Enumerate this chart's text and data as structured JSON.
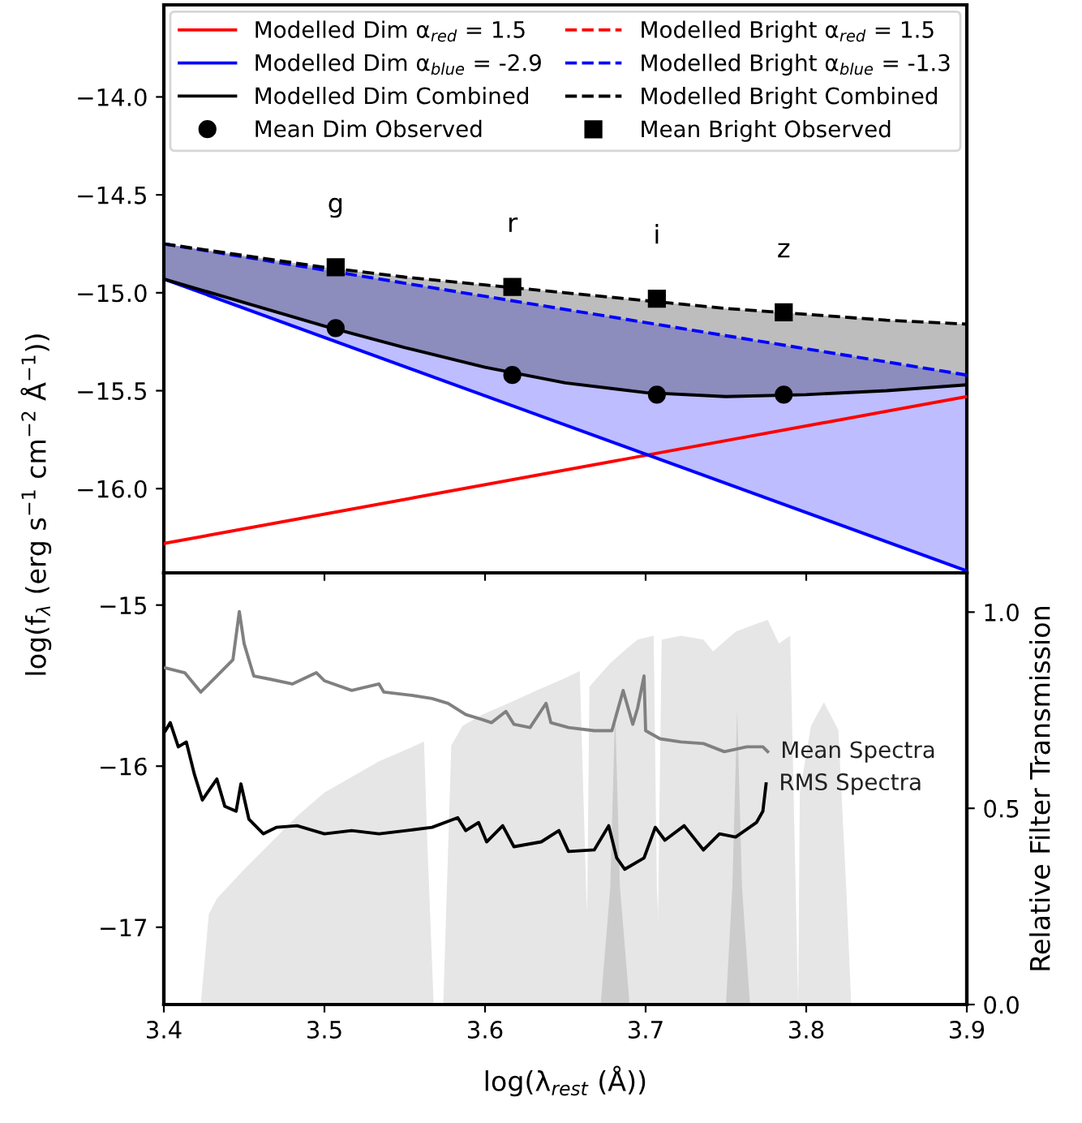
{
  "chart_data": [
    {
      "type": "line",
      "ylabel": "log(f$_{λ}$ (erg s$^{−1}$ cm$^{−2}$ Å$^{−1}$))",
      "xlim": [
        3.4,
        3.9
      ],
      "xticks": [
        3.4,
        3.5,
        3.6,
        3.7,
        3.8,
        3.9
      ],
      "ylim": [
        -16.43,
        -13.53
      ],
      "yticks": [
        {
          "value": -16.0,
          "label": "−16.0"
        },
        {
          "value": -15.5,
          "label": "−15.5"
        },
        {
          "value": -15.0,
          "label": "−15.0"
        },
        {
          "value": -14.5,
          "label": "−14.5"
        },
        {
          "value": -14.0,
          "label": "−14.0"
        }
      ],
      "tick_labels": "y",
      "legend": "top",
      "grid": false,
      "annotations": [
        "g",
        "r",
        "i",
        "z"
      ],
      "series": [
        {
          "name": "Modelled Dim α$_{red}$ = 1.5",
          "color": "#ff0000",
          "line_style": "solid",
          "x": [
            3.4,
            3.9
          ],
          "values": [
            -16.28,
            -15.53
          ]
        },
        {
          "name": "Modelled Dim α$_{blue}$ = -2.9",
          "color": "#0000ff",
          "line_style": "solid",
          "x": [
            3.4,
            3.9
          ],
          "values": [
            -14.93,
            -16.42
          ]
        },
        {
          "name": "Modelled Dim Combined",
          "color": "#000000",
          "line_style": "solid",
          "x": [
            3.4,
            3.45,
            3.5,
            3.55,
            3.6,
            3.65,
            3.7,
            3.75,
            3.8,
            3.85,
            3.9
          ],
          "values": [
            -14.93,
            -15.05,
            -15.17,
            -15.28,
            -15.38,
            -15.46,
            -15.51,
            -15.53,
            -15.52,
            -15.5,
            -15.47
          ]
        },
        {
          "name": "Mean Dim Observed",
          "type": "scatter",
          "color": "#000000",
          "marker": "circle",
          "x": [
            3.507,
            3.617,
            3.707,
            3.786
          ],
          "values": [
            -15.18,
            -15.42,
            -15.52,
            -15.52
          ]
        },
        {
          "name": "Modelled Bright α$_{red}$ = 1.5",
          "color": "#ff0000",
          "line_style": "dashed"
        },
        {
          "name": "Modelled Bright α$_{blue}$ = -1.3",
          "color": "#0000ff",
          "line_style": "dashed",
          "x": [
            3.4,
            3.9
          ],
          "values": [
            -14.75,
            -15.42
          ],
          "lower": [
            -14.93,
            -16.42
          ],
          "upper": [
            -14.75,
            -15.42
          ]
        },
        {
          "name": "Modelled Bright Combined",
          "color": "#000000",
          "line_style": "dashed",
          "x": [
            3.4,
            3.45,
            3.5,
            3.55,
            3.6,
            3.65,
            3.7,
            3.75,
            3.8,
            3.85,
            3.9
          ],
          "values": [
            -14.75,
            -14.81,
            -14.87,
            -14.92,
            -14.96,
            -15.0,
            -15.04,
            -15.08,
            -15.11,
            -15.14,
            -15.16
          ],
          "lower": [
            -14.93,
            -15.05,
            -15.17,
            -15.28,
            -15.38,
            -15.46,
            -15.51,
            -15.53,
            -15.52,
            -15.5,
            -15.47
          ],
          "upper": [
            -14.75,
            -14.81,
            -14.87,
            -14.92,
            -14.96,
            -15.0,
            -15.04,
            -15.08,
            -15.11,
            -15.14,
            -15.16
          ]
        },
        {
          "name": "Mean Bright Observed",
          "type": "scatter",
          "color": "#000000",
          "marker": "square",
          "x": [
            3.507,
            3.617,
            3.707,
            3.786
          ],
          "values": [
            -14.87,
            -14.97,
            -15.03,
            -15.1
          ]
        }
      ]
    },
    {
      "type": "line",
      "xlabel": "log(λ$_{rest}$ (Å))",
      "y2label": "Relative Filter Transmission",
      "xlim": [
        3.4,
        3.9
      ],
      "xticks": [
        3.4,
        3.5,
        3.6,
        3.7,
        3.8,
        3.9
      ],
      "ylim": [
        -17.48,
        -14.8
      ],
      "yticks": [
        {
          "value": -17,
          "label": "−17"
        },
        {
          "value": -16,
          "label": "−16"
        },
        {
          "value": -15,
          "label": "−15"
        }
      ],
      "y2lim": [
        0,
        1.1
      ],
      "y2ticks": [
        {
          "value": 0,
          "label": "0.0"
        },
        {
          "value": 0.5,
          "label": "0.5"
        },
        {
          "value": 1.0,
          "label": "1.0"
        }
      ],
      "legend": false,
      "grid": false,
      "series": [
        {
          "type": "area",
          "axis": "y2",
          "color": "#e6e6e6",
          "x": [
            3.423,
            3.428,
            3.433,
            3.449,
            3.466,
            3.483,
            3.5,
            3.517,
            3.534,
            3.551,
            3.562,
            3.564,
            3.568
          ],
          "values": [
            0.0,
            0.23,
            0.27,
            0.34,
            0.41,
            0.48,
            0.54,
            0.58,
            0.62,
            0.65,
            0.67,
            0.42,
            0.0
          ]
        },
        {
          "type": "area",
          "axis": "y2",
          "color": "#e6e6e6",
          "x": [
            3.574,
            3.579,
            3.586,
            3.599,
            3.616,
            3.632,
            3.649,
            3.659,
            3.663,
            3.666
          ],
          "values": [
            0.0,
            0.66,
            0.71,
            0.74,
            0.77,
            0.8,
            0.83,
            0.85,
            0.29,
            0.0
          ]
        },
        {
          "type": "area",
          "axis": "y2",
          "color": "#e6e6e6",
          "x": [
            3.663,
            3.665,
            3.678,
            3.689,
            3.695,
            3.705,
            3.707,
            3.71
          ],
          "values": [
            0.0,
            0.81,
            0.87,
            0.91,
            0.93,
            0.94,
            0.3,
            0.0
          ]
        },
        {
          "type": "area",
          "axis": "y2",
          "color": "#e6e6e6",
          "x": [
            3.707,
            3.71,
            3.722,
            3.736,
            3.742,
            3.756,
            3.769,
            3.776,
            3.783,
            3.79,
            3.795
          ],
          "values": [
            0.0,
            0.93,
            0.94,
            0.93,
            0.9,
            0.95,
            0.97,
            0.98,
            0.92,
            0.94,
            0.0
          ]
        },
        {
          "type": "area",
          "axis": "y2",
          "color": "#e6e6e6",
          "x": [
            3.795,
            3.796,
            3.803,
            3.811,
            3.82,
            3.825,
            3.828
          ],
          "values": [
            0.0,
            0.54,
            0.71,
            0.77,
            0.7,
            0.29,
            0.0
          ]
        },
        {
          "type": "area",
          "axis": "y2",
          "color": "#cccccc",
          "x": [
            3.672,
            3.678,
            3.681,
            3.684,
            3.69
          ],
          "values": [
            0.0,
            0.3,
            0.75,
            0.3,
            0.0
          ]
        },
        {
          "type": "area",
          "axis": "y2",
          "color": "#cccccc",
          "x": [
            3.75,
            3.754,
            3.757,
            3.76,
            3.765
          ],
          "values": [
            0.0,
            0.3,
            0.75,
            0.3,
            0.0
          ]
        },
        {
          "name": "Mean Spectra",
          "color": "#808080",
          "x": [
            3.401,
            3.413,
            3.423,
            3.433,
            3.443,
            3.447,
            3.45,
            3.456,
            3.466,
            3.48,
            3.495,
            3.5,
            3.517,
            3.534,
            3.537,
            3.554,
            3.567,
            3.577,
            3.588,
            3.598,
            3.604,
            3.613,
            3.618,
            3.628,
            3.638,
            3.641,
            3.652,
            3.668,
            3.679,
            3.686,
            3.692,
            3.695,
            3.699,
            3.7,
            3.709,
            3.722,
            3.736,
            3.749,
            3.763,
            3.773,
            3.776
          ],
          "values": [
            -15.39,
            -15.42,
            -15.54,
            -15.44,
            -15.34,
            -15.04,
            -15.24,
            -15.44,
            -15.46,
            -15.49,
            -15.42,
            -15.47,
            -15.53,
            -15.49,
            -15.54,
            -15.56,
            -15.58,
            -15.61,
            -15.68,
            -15.71,
            -15.73,
            -15.66,
            -15.74,
            -15.76,
            -15.61,
            -15.73,
            -15.76,
            -15.78,
            -15.78,
            -15.53,
            -15.74,
            -15.64,
            -15.44,
            -15.78,
            -15.83,
            -15.85,
            -15.86,
            -15.91,
            -15.88,
            -15.88,
            -15.91
          ]
        },
        {
          "name": "RMS Spectra",
          "color": "#000000",
          "x": [
            3.401,
            3.404,
            3.409,
            3.414,
            3.419,
            3.424,
            3.433,
            3.438,
            3.445,
            3.448,
            3.453,
            3.462,
            3.47,
            3.483,
            3.5,
            3.517,
            3.534,
            3.551,
            3.567,
            3.583,
            3.588,
            3.596,
            3.601,
            3.611,
            3.618,
            3.635,
            3.646,
            3.652,
            3.668,
            3.677,
            3.682,
            3.687,
            3.699,
            3.706,
            3.712,
            3.724,
            3.736,
            3.746,
            3.756,
            3.769,
            3.773,
            3.775
          ],
          "values": [
            -15.78,
            -15.73,
            -15.88,
            -15.85,
            -16.05,
            -16.21,
            -16.08,
            -16.25,
            -16.28,
            -16.11,
            -16.33,
            -16.42,
            -16.38,
            -16.37,
            -16.42,
            -16.4,
            -16.42,
            -16.4,
            -16.38,
            -16.32,
            -16.4,
            -16.35,
            -16.47,
            -16.37,
            -16.5,
            -16.47,
            -16.4,
            -16.53,
            -16.52,
            -16.37,
            -16.57,
            -16.64,
            -16.57,
            -16.38,
            -16.46,
            -16.37,
            -16.52,
            -16.42,
            -16.44,
            -16.35,
            -16.28,
            -16.11
          ]
        }
      ]
    }
  ]
}
